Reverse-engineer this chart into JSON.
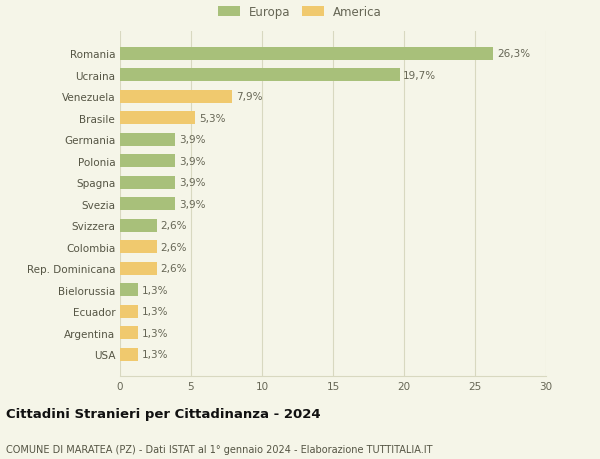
{
  "categories": [
    "Romania",
    "Ucraina",
    "Venezuela",
    "Brasile",
    "Germania",
    "Polonia",
    "Spagna",
    "Svezia",
    "Svizzera",
    "Colombia",
    "Rep. Dominicana",
    "Bielorussia",
    "Ecuador",
    "Argentina",
    "USA"
  ],
  "values": [
    26.3,
    19.7,
    7.9,
    5.3,
    3.9,
    3.9,
    3.9,
    3.9,
    2.6,
    2.6,
    2.6,
    1.3,
    1.3,
    1.3,
    1.3
  ],
  "continents": [
    "Europa",
    "Europa",
    "America",
    "America",
    "Europa",
    "Europa",
    "Europa",
    "Europa",
    "Europa",
    "America",
    "America",
    "Europa",
    "America",
    "America",
    "America"
  ],
  "labels": [
    "26,3%",
    "19,7%",
    "7,9%",
    "5,3%",
    "3,9%",
    "3,9%",
    "3,9%",
    "3,9%",
    "2,6%",
    "2,6%",
    "2,6%",
    "1,3%",
    "1,3%",
    "1,3%",
    "1,3%"
  ],
  "color_europa": "#a8c07a",
  "color_america": "#f0c96e",
  "background_color": "#f5f5e8",
  "grid_color": "#d8d8c0",
  "xlim": [
    0,
    30
  ],
  "xticks": [
    0,
    5,
    10,
    15,
    20,
    25,
    30
  ],
  "title": "Cittadini Stranieri per Cittadinanza - 2024",
  "subtitle": "COMUNE DI MARATEA (PZ) - Dati ISTAT al 1° gennaio 2024 - Elaborazione TUTTITALIA.IT",
  "legend_europa": "Europa",
  "legend_america": "America",
  "bar_height": 0.6,
  "label_fontsize": 7.5,
  "tick_fontsize": 7.5,
  "title_fontsize": 9.5,
  "subtitle_fontsize": 7.0,
  "legend_fontsize": 8.5
}
